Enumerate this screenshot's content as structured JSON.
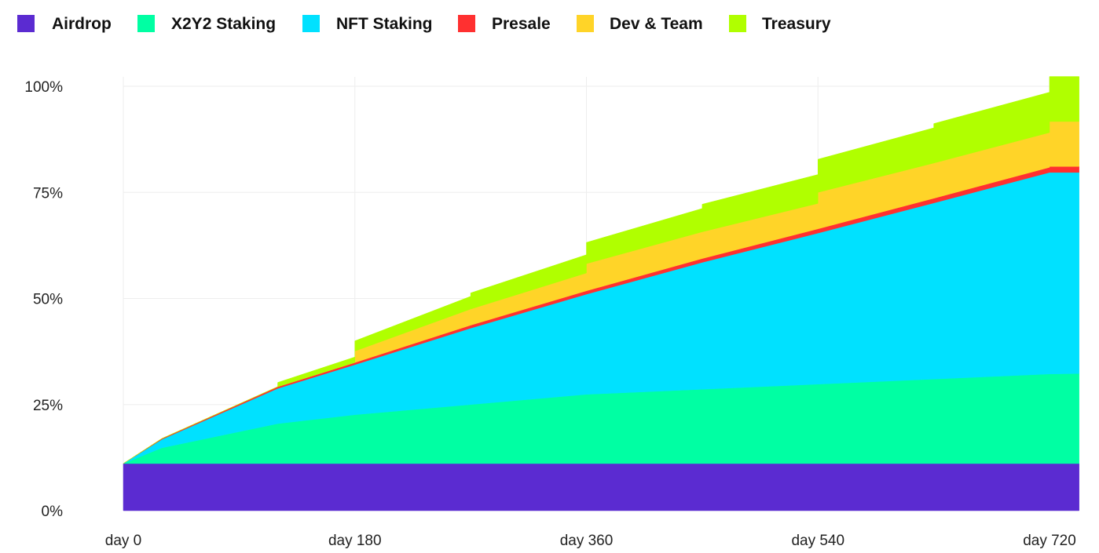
{
  "chart_data": {
    "type": "area",
    "stacked": true,
    "title": "",
    "xlabel": "",
    "ylabel": "",
    "x": [
      0,
      30,
      120,
      120,
      180,
      180,
      270,
      270,
      360,
      360,
      450,
      450,
      540,
      540,
      630,
      630,
      720,
      720,
      743
    ],
    "xlim": [
      0,
      743
    ],
    "ylim": [
      0,
      100
    ],
    "x_ticks": [
      0,
      180,
      360,
      540,
      720
    ],
    "x_tick_labels": [
      "day 0",
      "day 180",
      "day 360",
      "day 540",
      "day 720"
    ],
    "y_ticks": [
      0,
      25,
      50,
      75,
      100
    ],
    "y_tick_labels": [
      "0%",
      "25%",
      "50%",
      "75%",
      "100%"
    ],
    "grid": true,
    "legend_position": "top-left",
    "series": [
      {
        "name": "Airdrop",
        "color": "#5b2bd1",
        "values": [
          11.1,
          11.1,
          11.1,
          11.1,
          11.1,
          11.1,
          11.1,
          11.1,
          11.1,
          11.1,
          11.1,
          11.1,
          11.1,
          11.1,
          11.1,
          11.1,
          11.1,
          11.1,
          11.1
        ]
      },
      {
        "name": "X2Y2 Staking",
        "color": "#00ffa3",
        "values": [
          0,
          3.7,
          9.4,
          9.4,
          11.5,
          11.5,
          13.9,
          13.9,
          16.3,
          16.3,
          17.5,
          17.5,
          18.7,
          18.7,
          19.9,
          19.9,
          21.1,
          21.1,
          21.2
        ]
      },
      {
        "name": "NFT Staking",
        "color": "#00e1ff",
        "values": [
          0,
          2.0,
          8.3,
          8.3,
          11.8,
          11.8,
          18,
          18,
          23.6,
          23.6,
          29.9,
          29.9,
          35.6,
          35.6,
          41.5,
          41.5,
          47.5,
          47.5,
          47.4
        ]
      },
      {
        "name": "Presale",
        "color": "#ff3030",
        "values": [
          0,
          0.2,
          0.4,
          0.4,
          0.5,
          0.5,
          0.7,
          0.7,
          0.8,
          0.8,
          0.9,
          0.9,
          1.0,
          1.0,
          1.1,
          1.1,
          1.2,
          1.4,
          1.4
        ]
      },
      {
        "name": "Dev & Team",
        "color": "#ffd428",
        "values": [
          0,
          0,
          0,
          0,
          0,
          2.7,
          3.8,
          3.8,
          4.2,
          6.4,
          6.3,
          6.3,
          6.0,
          8.6,
          8.3,
          8.3,
          8.2,
          10.6,
          10.6
        ]
      },
      {
        "name": "Treasury",
        "color": "#b0ff00",
        "values": [
          0,
          0,
          0,
          1.0,
          1.3,
          2.4,
          3.0,
          3.8,
          4.3,
          5.0,
          5.5,
          6.5,
          6.8,
          7.8,
          8.3,
          9.3,
          9.5,
          10.6,
          10.6
        ]
      }
    ]
  }
}
